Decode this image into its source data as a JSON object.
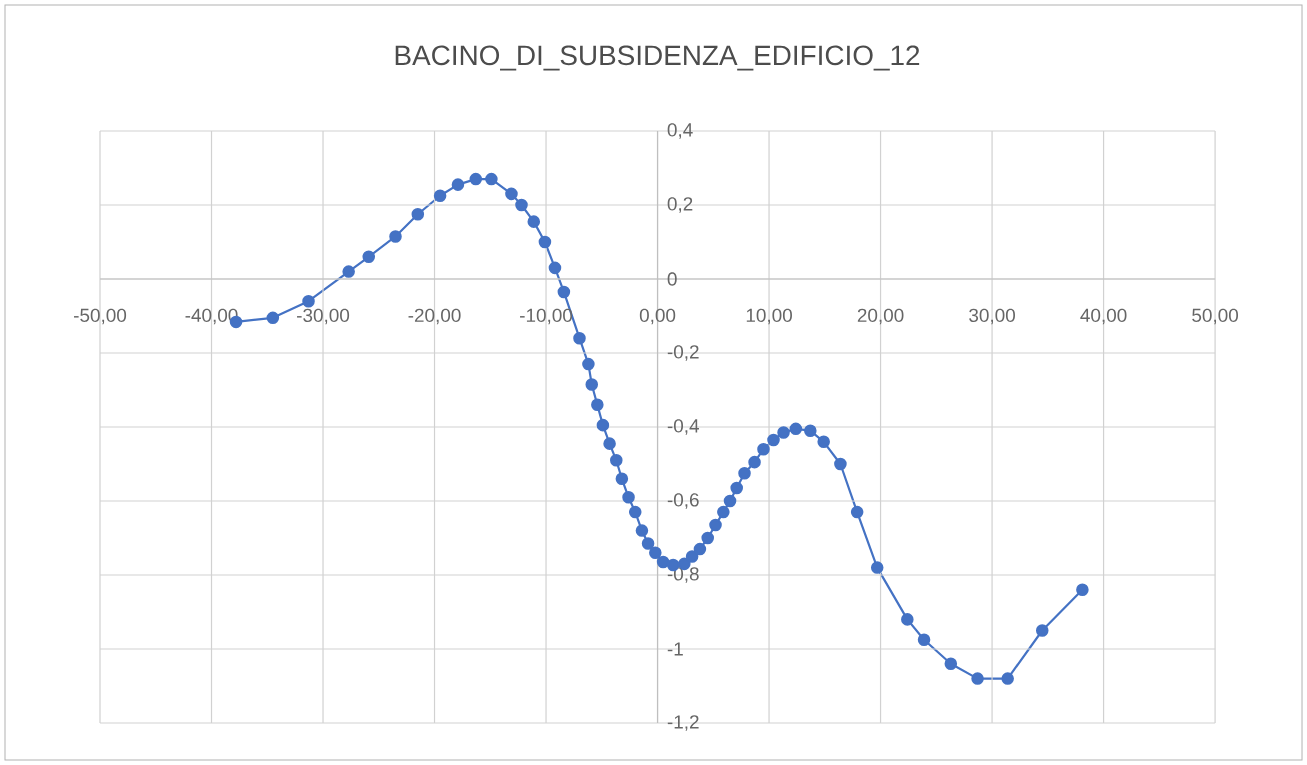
{
  "chart_data": {
    "type": "line",
    "title": "BACINO_DI_SUBSIDENZA_EDIFICIO_12",
    "series": [
      {
        "color": "#4472c4",
        "x": [
          -37.8,
          -34.5,
          -31.3,
          -27.7,
          -25.9,
          -23.5,
          -21.5,
          -19.5,
          -17.9,
          -16.3,
          -14.9,
          -13.1,
          -12.2,
          -11.1,
          -10.1,
          -9.2,
          -8.4,
          -7.0,
          -6.2,
          -5.9,
          -5.4,
          -4.9,
          -4.3,
          -3.7,
          -3.2,
          -2.6,
          -2.0,
          -1.4,
          -0.85,
          -0.2,
          0.5,
          1.4,
          2.4,
          3.1,
          3.8,
          4.5,
          5.2,
          5.9,
          6.5,
          7.1,
          7.8,
          8.7,
          9.5,
          10.4,
          11.3,
          12.4,
          13.7,
          14.9,
          16.4,
          17.9,
          19.7,
          22.4,
          23.9,
          26.3,
          28.7,
          31.4,
          34.5,
          38.1
        ],
        "values": [
          -0.116,
          -0.105,
          -0.06,
          0.02,
          0.06,
          0.115,
          0.175,
          0.225,
          0.255,
          0.27,
          0.27,
          0.23,
          0.2,
          0.155,
          0.1,
          0.03,
          -0.035,
          -0.16,
          -0.23,
          -0.285,
          -0.34,
          -0.395,
          -0.445,
          -0.49,
          -0.54,
          -0.59,
          -0.63,
          -0.68,
          -0.715,
          -0.74,
          -0.765,
          -0.773,
          -0.77,
          -0.75,
          -0.73,
          -0.7,
          -0.665,
          -0.63,
          -0.6,
          -0.565,
          -0.525,
          -0.495,
          -0.46,
          -0.435,
          -0.415,
          -0.405,
          -0.41,
          -0.44,
          -0.5,
          -0.63,
          -0.78,
          -0.92,
          -0.975,
          -1.04,
          -1.08,
          -1.08,
          -0.95,
          -0.84
        ]
      }
    ],
    "xlim": [
      -50,
      50
    ],
    "ylim": [
      -1.2,
      0.4
    ],
    "xticks": [
      {
        "value": -50,
        "label": "-50,00"
      },
      {
        "value": -40,
        "label": "-40,00"
      },
      {
        "value": -30,
        "label": "-30,00"
      },
      {
        "value": -20,
        "label": "-20,00"
      },
      {
        "value": -10,
        "label": "-10,00"
      },
      {
        "value": 0,
        "label": "0,00"
      },
      {
        "value": 10,
        "label": "10,00"
      },
      {
        "value": 20,
        "label": "20,00"
      },
      {
        "value": 30,
        "label": "30,00"
      },
      {
        "value": 40,
        "label": "40,00"
      },
      {
        "value": 50,
        "label": "50,00"
      }
    ],
    "yticks": [
      {
        "value": -1.2,
        "label": "-1,2"
      },
      {
        "value": -1,
        "label": "-1"
      },
      {
        "value": -0.8,
        "label": "-0,8"
      },
      {
        "value": -0.6,
        "label": "-0,6"
      },
      {
        "value": -0.4,
        "label": "-0,4"
      },
      {
        "value": -0.2,
        "label": "-0,2"
      },
      0,
      {
        "value": 0.2,
        "label": "0,2"
      },
      {
        "value": 0.4,
        "label": "0,4"
      }
    ],
    "grid": true,
    "marker": "circle",
    "line_style": "solid"
  }
}
